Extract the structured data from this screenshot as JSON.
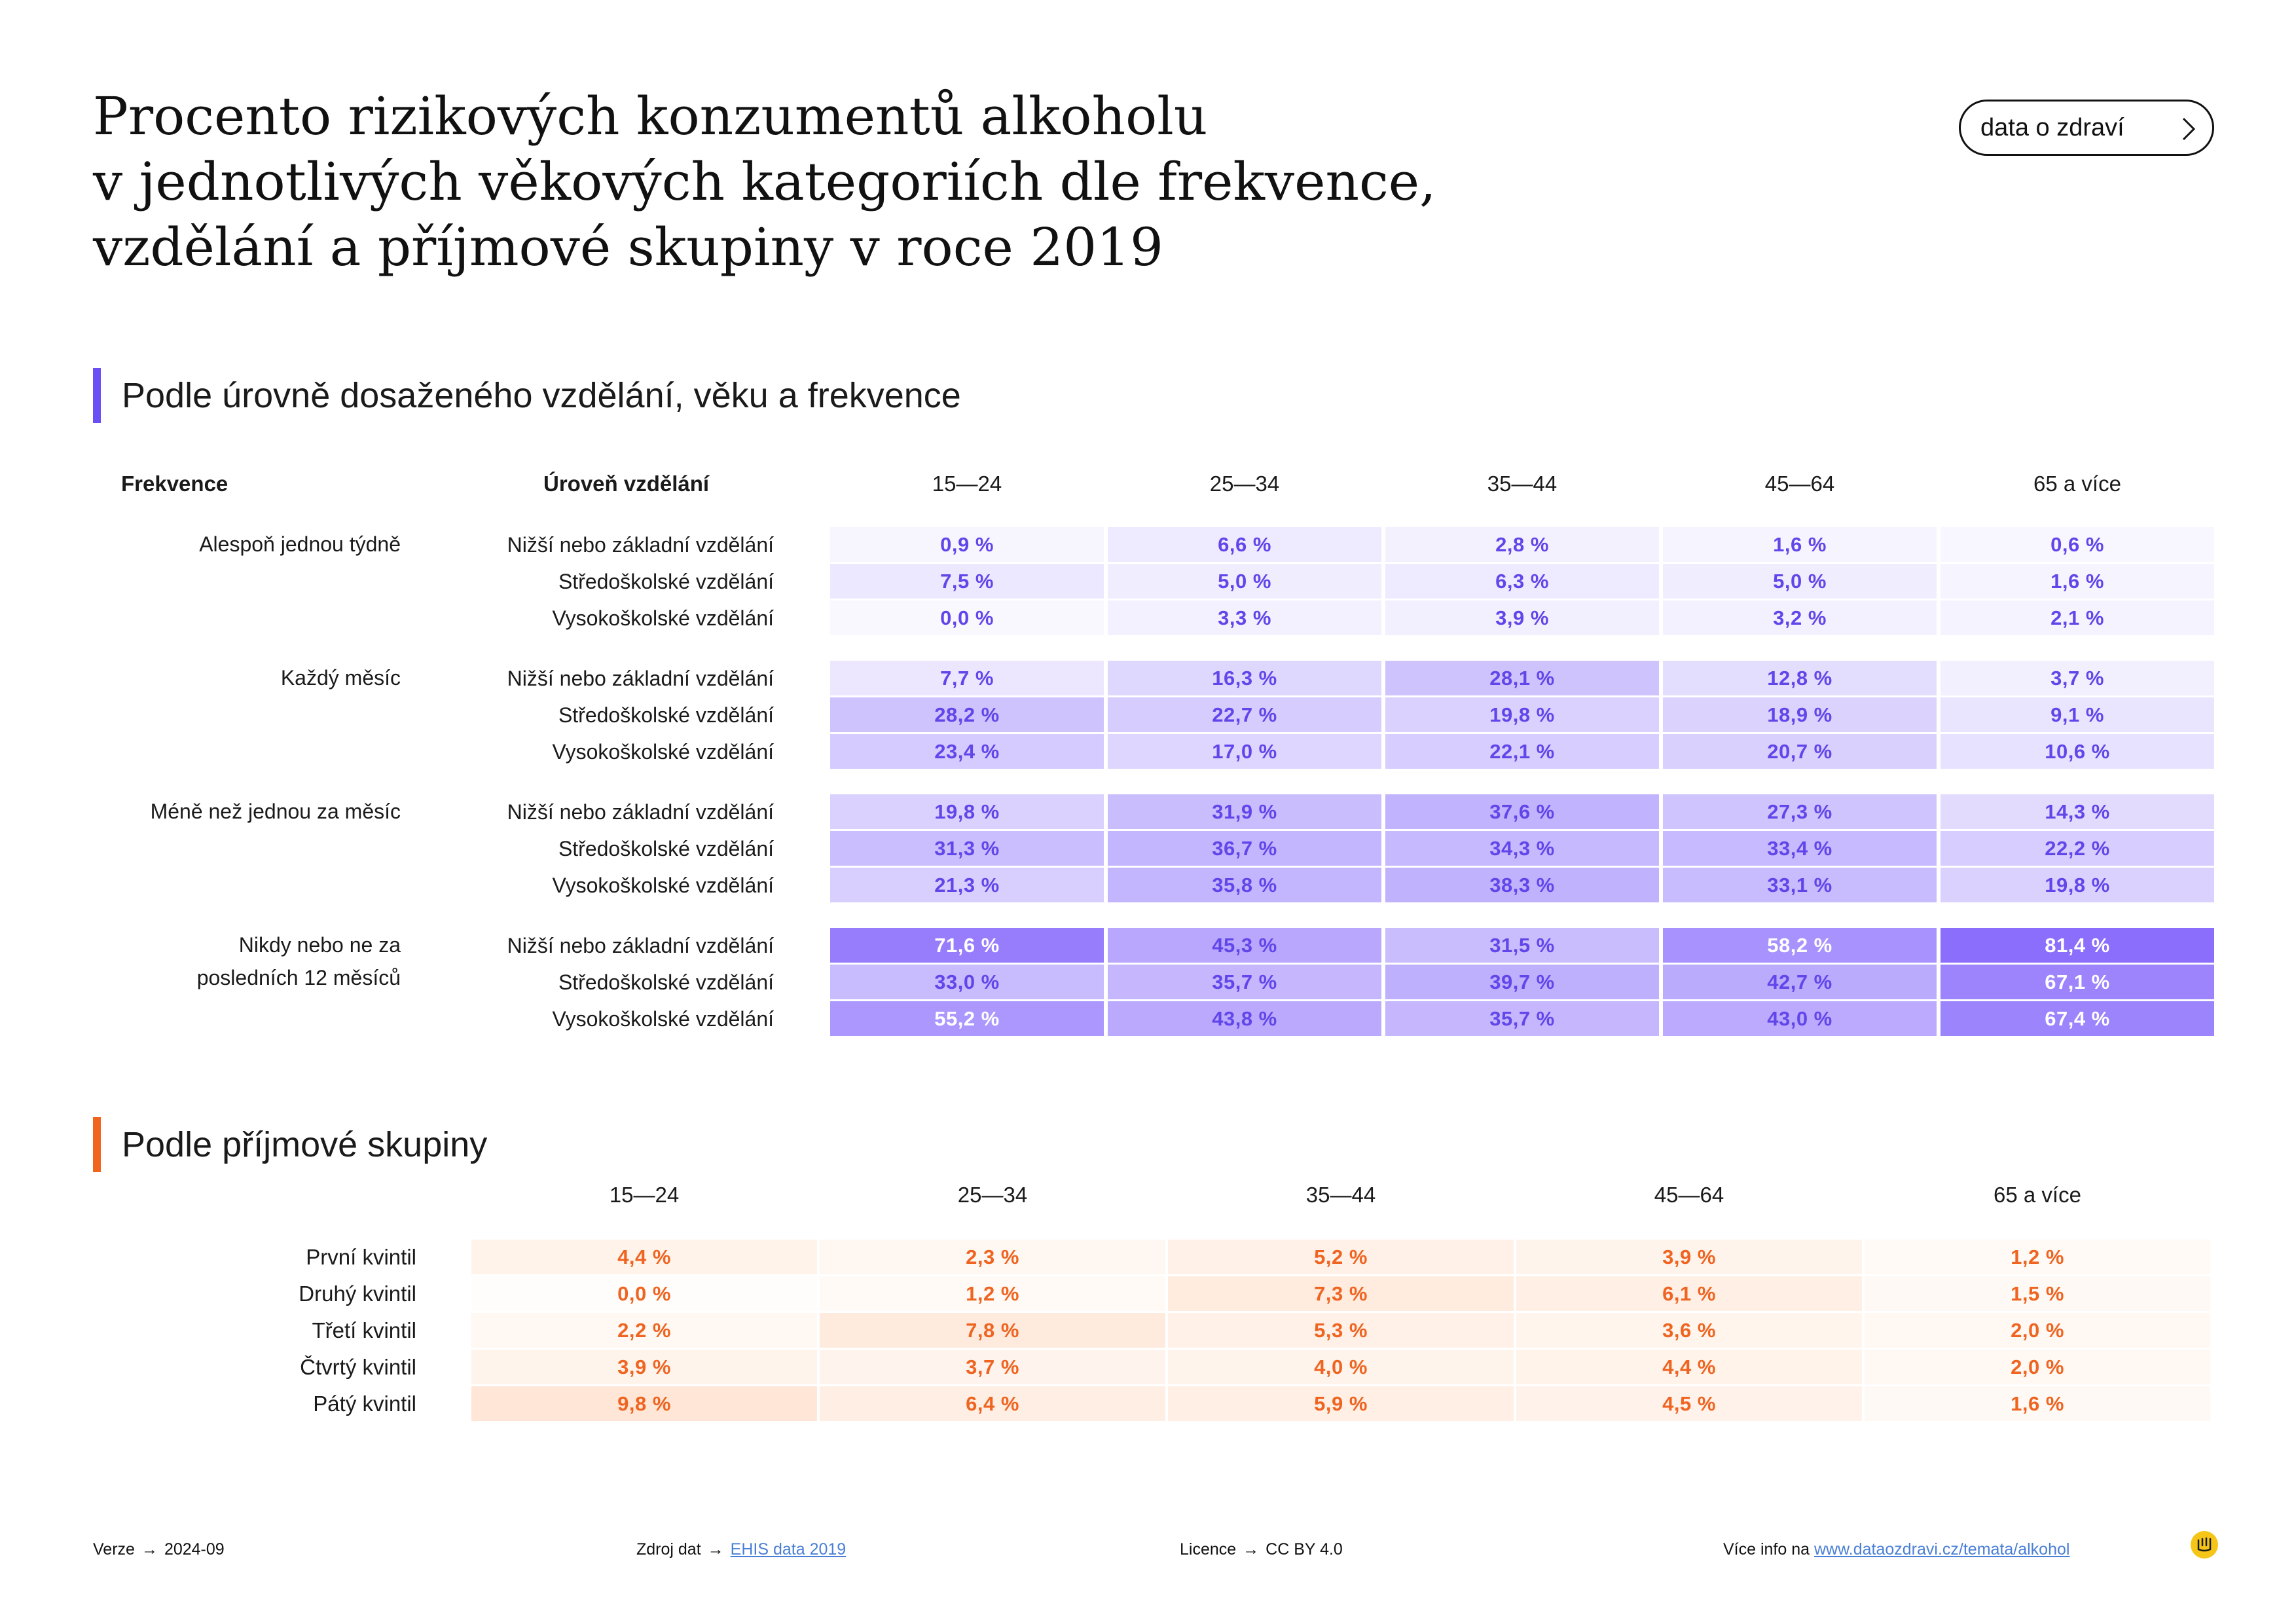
{
  "title": {
    "line1": "Procento rizikových konzumentů alkoholu",
    "line2": "v jednotlivých věkových kategoriích dle frekvence,",
    "line3": "vzdělání a příjmové skupiny v roce 2019"
  },
  "badge": {
    "label": "data o zdraví"
  },
  "section1": {
    "heading": "Podle úrovně dosaženého vzdělání, věku a frekvence",
    "col_freq": "Frekvence",
    "col_edu": "Úroveň vzdělání"
  },
  "section2": {
    "heading": "Podle příjmové skupiny"
  },
  "colors": {
    "purple_accent": "#6b4ef6",
    "orange_accent": "#f0641e",
    "purple_text": "#6246ea",
    "orange_text": "#ef6420"
  },
  "chart_data": [
    {
      "type": "heatmap",
      "title": "Podle úrovně dosaženého vzdělání, věku a frekvence",
      "ages": [
        "15—24",
        "25—34",
        "35—44",
        "45—64",
        "65 a více"
      ],
      "groups": [
        {
          "frequency": "Alespoň jednou týdně",
          "rows": [
            {
              "education": "Nižší nebo základní vzdělání",
              "labels": [
                "0,9 %",
                "6,6 %",
                "2,8 %",
                "1,6 %",
                "0,6 %"
              ],
              "values": [
                0.9,
                6.6,
                2.8,
                1.6,
                0.6
              ]
            },
            {
              "education": "Středoškolské vzdělání",
              "labels": [
                "7,5 %",
                "5,0 %",
                "6,3 %",
                "5,0 %",
                "1,6 %"
              ],
              "values": [
                7.5,
                5.0,
                6.3,
                5.0,
                1.6
              ]
            },
            {
              "education": "Vysokoškolské vzdělání",
              "labels": [
                "0,0 %",
                "3,3 %",
                "3,9 %",
                "3,2 %",
                "2,1 %"
              ],
              "values": [
                0.0,
                3.3,
                3.9,
                3.2,
                2.1
              ]
            }
          ]
        },
        {
          "frequency": "Každý měsíc",
          "rows": [
            {
              "education": "Nižší nebo základní vzdělání",
              "labels": [
                "7,7 %",
                "16,3 %",
                "28,1 %",
                "12,8 %",
                "3,7 %"
              ],
              "values": [
                7.7,
                16.3,
                28.1,
                12.8,
                3.7
              ]
            },
            {
              "education": "Středoškolské vzdělání",
              "labels": [
                "28,2 %",
                "22,7 %",
                "19,8 %",
                "18,9 %",
                "9,1 %"
              ],
              "values": [
                28.2,
                22.7,
                19.8,
                18.9,
                9.1
              ]
            },
            {
              "education": "Vysokoškolské vzdělání",
              "labels": [
                "23,4 %",
                "17,0 %",
                "22,1 %",
                "20,7 %",
                "10,6 %"
              ],
              "values": [
                23.4,
                17.0,
                22.1,
                20.7,
                10.6
              ]
            }
          ]
        },
        {
          "frequency": "Méně než jednou za měsíc",
          "rows": [
            {
              "education": "Nižší nebo základní vzdělání",
              "labels": [
                "19,8 %",
                "31,9 %",
                "37,6 %",
                "27,3 %",
                "14,3 %"
              ],
              "values": [
                19.8,
                31.9,
                37.6,
                27.3,
                14.3
              ]
            },
            {
              "education": "Středoškolské vzdělání",
              "labels": [
                "31,3 %",
                "36,7 %",
                "34,3 %",
                "33,4 %",
                "22,2 %"
              ],
              "values": [
                31.3,
                36.7,
                34.3,
                33.4,
                22.2
              ]
            },
            {
              "education": "Vysokoškolské vzdělání",
              "labels": [
                "21,3 %",
                "35,8 %",
                "38,3 %",
                "33,1 %",
                "19,8 %"
              ],
              "values": [
                21.3,
                35.8,
                38.3,
                33.1,
                19.8
              ]
            }
          ]
        },
        {
          "frequency": [
            "Nikdy nebo ne za",
            "posledních 12 měsíců"
          ],
          "rows": [
            {
              "education": "Nižší nebo základní vzdělání",
              "labels": [
                "71,6 %",
                "45,3 %",
                "31,5 %",
                "58,2 %",
                "81,4 %"
              ],
              "values": [
                71.6,
                45.3,
                31.5,
                58.2,
                81.4
              ]
            },
            {
              "education": "Středoškolské vzdělání",
              "labels": [
                "33,0 %",
                "35,7 %",
                "39,7 %",
                "42,7 %",
                "67,1 %"
              ],
              "values": [
                33.0,
                35.7,
                39.7,
                42.7,
                67.1
              ]
            },
            {
              "education": "Vysokoškolské vzdělání",
              "labels": [
                "55,2 %",
                "43,8 %",
                "35,7 %",
                "43,0 %",
                "67,4 %"
              ],
              "values": [
                55.2,
                43.8,
                35.7,
                43.0,
                67.4
              ]
            }
          ]
        }
      ]
    },
    {
      "type": "heatmap",
      "title": "Podle příjmové skupiny",
      "ages": [
        "15—24",
        "25—34",
        "35—44",
        "45—64",
        "65 a více"
      ],
      "rows": [
        {
          "group": "První kvintil",
          "labels": [
            "4,4 %",
            "2,3 %",
            "5,2 %",
            "3,9 %",
            "1,2 %"
          ],
          "values": [
            4.4,
            2.3,
            5.2,
            3.9,
            1.2
          ]
        },
        {
          "group": "Druhý kvintil",
          "labels": [
            "0,0 %",
            "1,2 %",
            "7,3 %",
            "6,1 %",
            "1,5 %"
          ],
          "values": [
            0.0,
            1.2,
            7.3,
            6.1,
            1.5
          ]
        },
        {
          "group": "Třetí kvintil",
          "labels": [
            "2,2 %",
            "7,8 %",
            "5,3 %",
            "3,6 %",
            "2,0 %"
          ],
          "values": [
            2.2,
            7.8,
            5.3,
            3.6,
            2.0
          ]
        },
        {
          "group": "Čtvrtý kvintil",
          "labels": [
            "3,9 %",
            "3,7 %",
            "4,0 %",
            "4,4 %",
            "2,0 %"
          ],
          "values": [
            3.9,
            3.7,
            4.0,
            4.4,
            2.0
          ]
        },
        {
          "group": "Pátý kvintil",
          "labels": [
            "9,8 %",
            "6,4 %",
            "5,9 %",
            "4,5 %",
            "1,6 %"
          ],
          "values": [
            9.8,
            6.4,
            5.9,
            4.5,
            1.6
          ]
        }
      ]
    }
  ],
  "footer": {
    "version_label": "Verze",
    "version_arrow": "→",
    "version_value": "2024-09",
    "source_label": "Zdroj dat",
    "source_arrow": "→",
    "source_link": "EHIS data 2019",
    "license_label": "Licence",
    "license_arrow": "→",
    "license_value": "CC BY 4.0",
    "more_label": "Více info na",
    "more_link": "www.dataozdravi.cz/temata/alkohol"
  }
}
